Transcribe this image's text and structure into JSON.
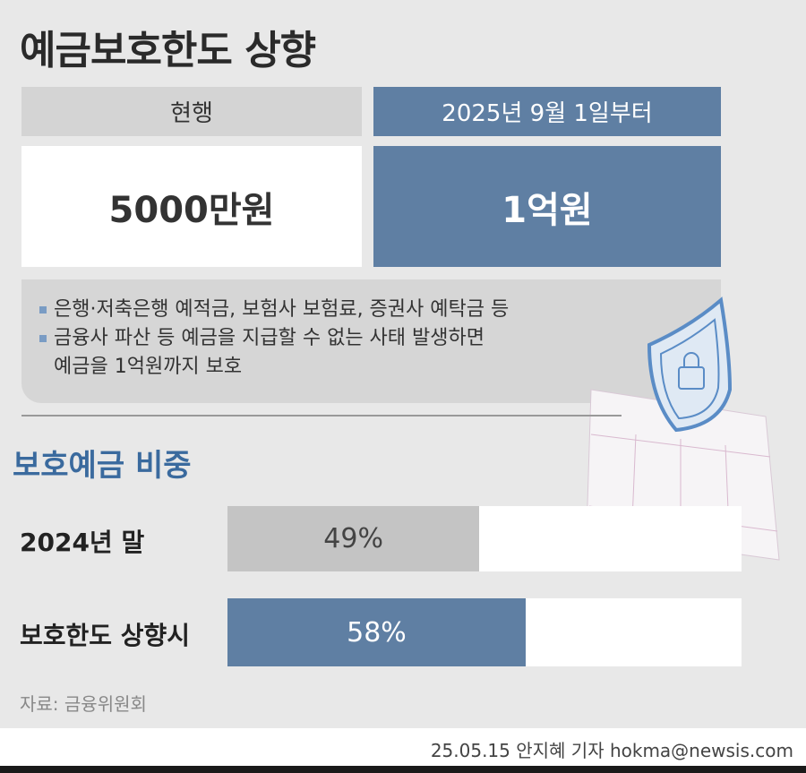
{
  "title": "예금보호한도 상향",
  "table": {
    "current_header": "현행",
    "new_header": "2025년 9월 1일부터",
    "current_value": "5000만원",
    "new_value": "1억원"
  },
  "notes": [
    "은행·저축은행 예적금, 보험사 보험료, 증권사 예탁금 등",
    "금융사 파산 등 예금을 지급할 수 없는 사태 발생하면",
    "예금을 1억원까지 보호"
  ],
  "colors": {
    "accent": "#5f7fa3",
    "title_blue": "#3a6a9e",
    "gray_bar": "#c4c4c4"
  },
  "chart_data": {
    "type": "bar",
    "orientation": "horizontal",
    "title": "보호예금 비중",
    "categories": [
      "2024년 말",
      "보호한도 상향시"
    ],
    "values": [
      49,
      58
    ],
    "value_labels": [
      "49%",
      "58%"
    ],
    "xlim": [
      0,
      100
    ]
  },
  "source": "자료: 금융위원회",
  "credit": "25.05.15 안지혜 기자 hokma@newsis.com"
}
